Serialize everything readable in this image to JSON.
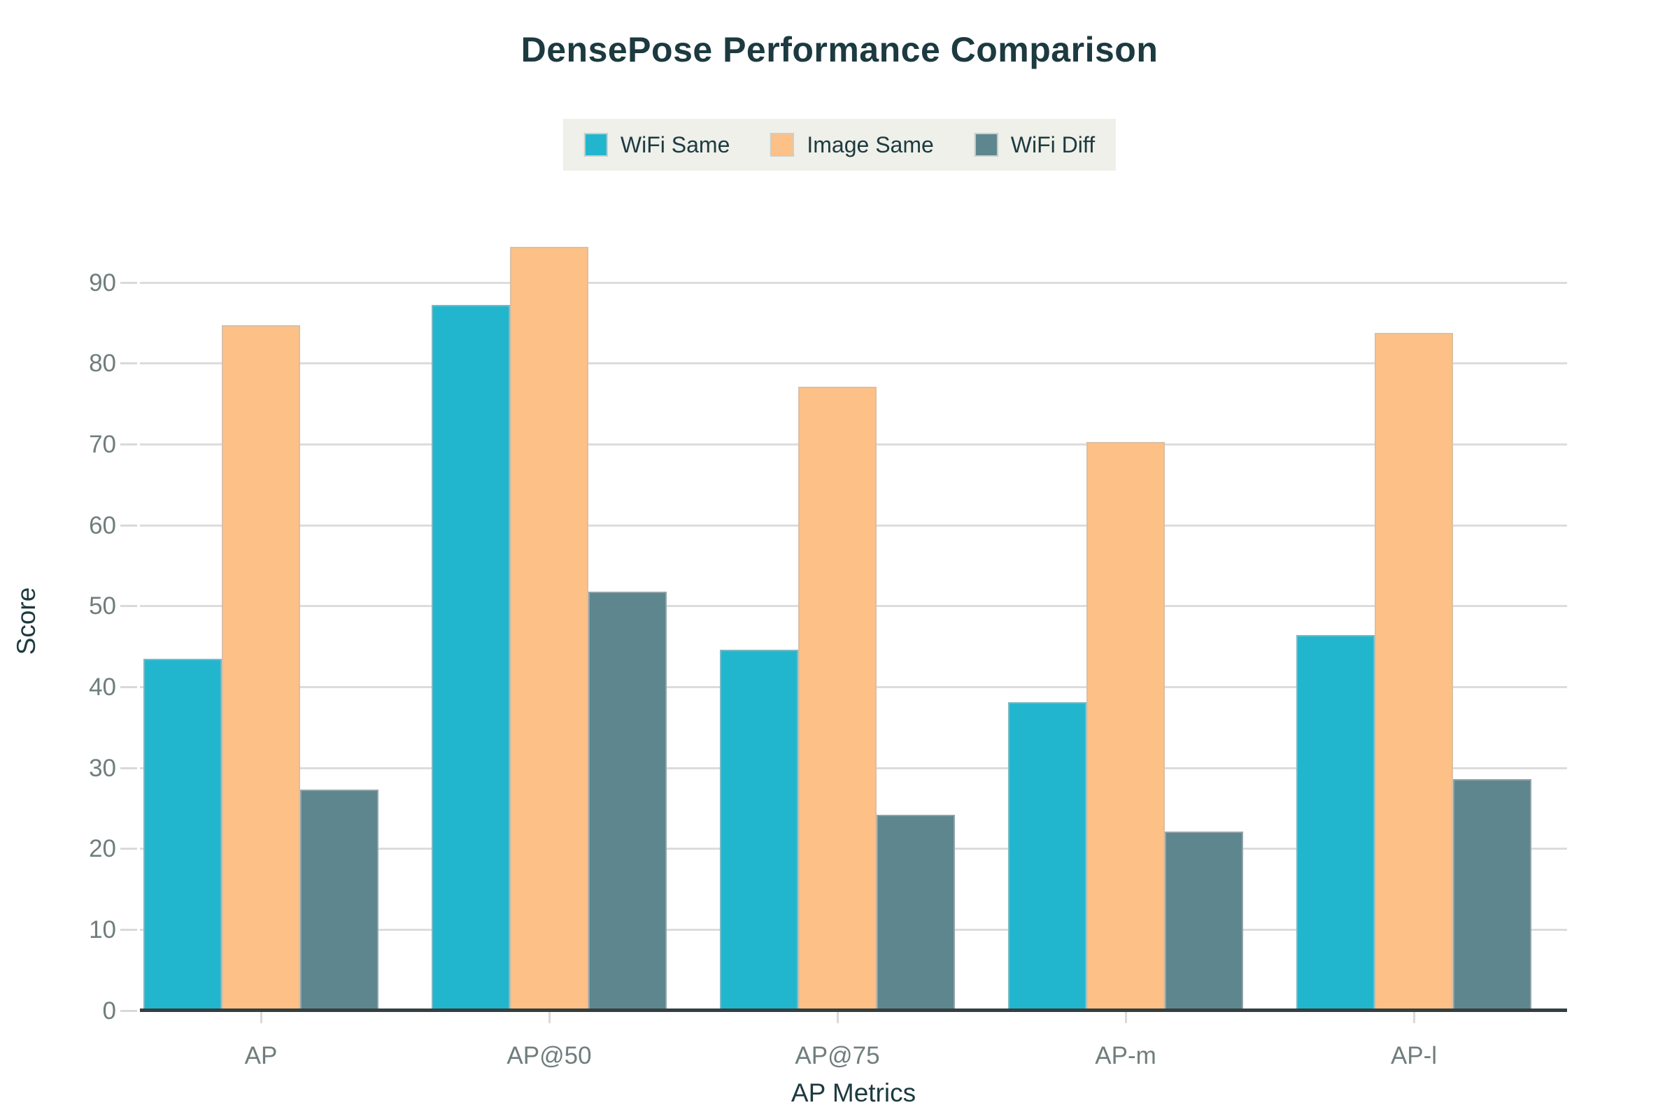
{
  "title": "DensePose Performance Comparison",
  "axes": {
    "y_label": "Score",
    "x_label": "AP Metrics",
    "y_tick_labels": [
      "0",
      "10",
      "20",
      "30",
      "40",
      "50",
      "60",
      "70",
      "80",
      "90"
    ]
  },
  "legend": {
    "items": [
      {
        "label": "WiFi Same",
        "color": "#21b6ce"
      },
      {
        "label": "Image Same",
        "color": "#fdc086"
      },
      {
        "label": "WiFi Diff",
        "color": "#5d868f"
      }
    ]
  },
  "colors": {
    "title_text": "#1c3a40",
    "tick_text": "#707d7d",
    "gridline": "#dcdcdc",
    "baseline": "#353f3f",
    "legend_background": "#eef0e9",
    "series_wifi_same": "#21b6ce",
    "series_image_same": "#fdc086",
    "series_wifi_diff": "#5d868f"
  },
  "chart_data": {
    "type": "bar",
    "title": "DensePose Performance Comparison",
    "xlabel": "AP Metrics",
    "ylabel": "Score",
    "categories": [
      "AP",
      "AP@50",
      "AP@75",
      "AP-m",
      "AP-l"
    ],
    "series": [
      {
        "name": "WiFi Same",
        "color": "#21b6ce",
        "values": [
          43.5,
          87.2,
          44.6,
          38.1,
          46.4
        ]
      },
      {
        "name": "Image Same",
        "color": "#fdc086",
        "values": [
          84.7,
          94.4,
          77.1,
          70.3,
          83.8
        ]
      },
      {
        "name": "WiFi Diff",
        "color": "#5d868f",
        "values": [
          27.3,
          51.8,
          24.2,
          22.1,
          28.6
        ]
      }
    ],
    "ylim": [
      0,
      96.4
    ],
    "yticks": [
      0,
      10,
      20,
      30,
      40,
      50,
      60,
      70,
      80,
      90
    ],
    "grid": true,
    "legend_position": "top-center"
  }
}
